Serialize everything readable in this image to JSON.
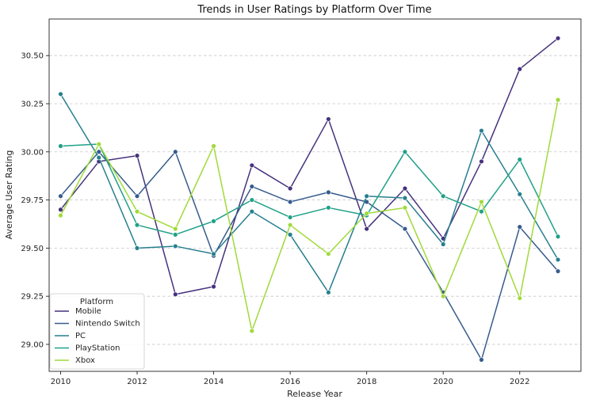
{
  "chart_data": {
    "type": "line",
    "title": "Trends in User Ratings by Platform Over Time",
    "xlabel": "Release Year",
    "ylabel": "Average User Rating",
    "xlim": [
      2009.7,
      2023.6
    ],
    "ylim": [
      28.86,
      30.69
    ],
    "x_ticks": [
      2010,
      2012,
      2014,
      2016,
      2018,
      2020,
      2022
    ],
    "y_ticks": [
      29.0,
      29.25,
      29.5,
      29.75,
      30.0,
      30.25,
      30.5
    ],
    "grid": "y-dashed",
    "legend_title": "Platform",
    "legend_position": "lower-left",
    "x": [
      2010,
      2011,
      2012,
      2013,
      2014,
      2015,
      2016,
      2017,
      2018,
      2019,
      2020,
      2021,
      2022,
      2023
    ],
    "series": [
      {
        "name": "Mobile",
        "color": "#46327e",
        "values": [
          29.7,
          29.95,
          29.98,
          29.26,
          29.3,
          29.93,
          29.81,
          30.17,
          29.6,
          29.81,
          29.55,
          29.95,
          30.43,
          30.59
        ]
      },
      {
        "name": "Nintendo Switch",
        "color": "#365c8d",
        "values": [
          29.77,
          30.0,
          29.77,
          30.0,
          29.46,
          29.82,
          29.74,
          29.79,
          29.74,
          29.6,
          29.27,
          28.92,
          29.61,
          29.38
        ]
      },
      {
        "name": "PC",
        "color": "#277f8e",
        "values": [
          30.3,
          29.97,
          29.5,
          29.51,
          29.47,
          29.69,
          29.57,
          29.27,
          29.77,
          29.76,
          29.52,
          30.11,
          29.78,
          29.44
        ]
      },
      {
        "name": "PlayStation",
        "color": "#1fa187",
        "values": [
          30.03,
          30.04,
          29.62,
          29.57,
          29.64,
          29.75,
          29.66,
          29.71,
          29.67,
          30.0,
          29.77,
          29.69,
          29.96,
          29.56
        ]
      },
      {
        "name": "Xbox",
        "color": "#a0da39",
        "values": [
          29.67,
          30.04,
          29.69,
          29.6,
          30.03,
          29.07,
          29.62,
          29.47,
          29.68,
          29.71,
          29.25,
          29.74,
          29.24,
          30.27
        ]
      }
    ]
  }
}
